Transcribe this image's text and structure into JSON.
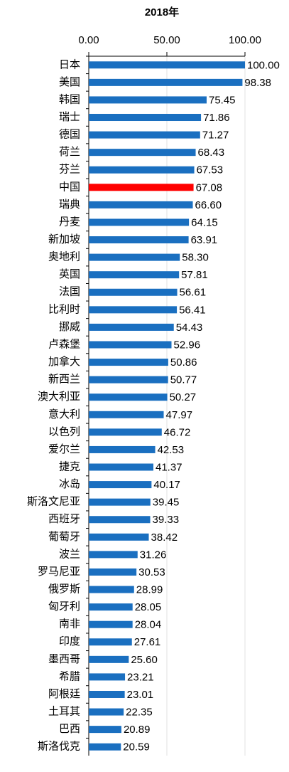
{
  "chart_data": {
    "type": "hbar",
    "title": "2018年",
    "categories": [
      "日本",
      "美国",
      "韩国",
      "瑞士",
      "德国",
      "荷兰",
      "芬兰",
      "中国",
      "瑞典",
      "丹麦",
      "新加坡",
      "奥地利",
      "英国",
      "法国",
      "比利时",
      "挪威",
      "卢森堡",
      "加拿大",
      "新西兰",
      "澳大利亚",
      "意大利",
      "以色列",
      "爱尔兰",
      "捷克",
      "冰岛",
      "斯洛文尼亚",
      "西班牙",
      "葡萄牙",
      "波兰",
      "罗马尼亚",
      "俄罗斯",
      "匈牙利",
      "南非",
      "印度",
      "墨西哥",
      "希腊",
      "阿根廷",
      "土耳其",
      "巴西",
      "斯洛伐克"
    ],
    "values": [
      100,
      98.38,
      75.45,
      71.86,
      71.27,
      68.43,
      67.53,
      67.08,
      66.6,
      64.15,
      63.91,
      58.3,
      57.81,
      56.61,
      56.41,
      54.43,
      52.96,
      50.86,
      50.77,
      50.27,
      47.97,
      46.72,
      42.53,
      41.37,
      40.17,
      39.45,
      39.33,
      38.42,
      31.26,
      30.53,
      28.99,
      28.05,
      28.04,
      27.61,
      25.6,
      23.21,
      23.01,
      22.35,
      20.89,
      20.59
    ],
    "value_labels": [
      "100.00",
      "98.38",
      "75.45",
      "71.86",
      "71.27",
      "68.43",
      "67.53",
      "67.08",
      "66.60",
      "64.15",
      "63.91",
      "58.30",
      "57.81",
      "56.61",
      "56.41",
      "54.43",
      "52.96",
      "50.86",
      "50.77",
      "50.27",
      "47.97",
      "46.72",
      "42.53",
      "41.37",
      "40.17",
      "39.45",
      "39.33",
      "38.42",
      "31.26",
      "30.53",
      "28.99",
      "28.05",
      "28.04",
      "27.61",
      "25.60",
      "23.21",
      "23.01",
      "22.35",
      "20.89",
      "20.59"
    ],
    "colors": [
      "#1a6fc0",
      "#1a6fc0",
      "#1a6fc0",
      "#1a6fc0",
      "#1a6fc0",
      "#1a6fc0",
      "#1a6fc0",
      "#ff0000",
      "#1a6fc0",
      "#1a6fc0",
      "#1a6fc0",
      "#1a6fc0",
      "#1a6fc0",
      "#1a6fc0",
      "#1a6fc0",
      "#1a6fc0",
      "#1a6fc0",
      "#1a6fc0",
      "#1a6fc0",
      "#1a6fc0",
      "#1a6fc0",
      "#1a6fc0",
      "#1a6fc0",
      "#1a6fc0",
      "#1a6fc0",
      "#1a6fc0",
      "#1a6fc0",
      "#1a6fc0",
      "#1a6fc0",
      "#1a6fc0",
      "#1a6fc0",
      "#1a6fc0",
      "#1a6fc0",
      "#1a6fc0",
      "#1a6fc0",
      "#1a6fc0",
      "#1a6fc0",
      "#1a6fc0",
      "#1a6fc0",
      "#1a6fc0"
    ],
    "xlim": [
      0,
      100
    ],
    "xticks": [
      {
        "value": 0,
        "label": "0.00"
      },
      {
        "value": 50,
        "label": "50.00"
      },
      {
        "value": 100,
        "label": "100.00"
      }
    ],
    "grid": true
  }
}
